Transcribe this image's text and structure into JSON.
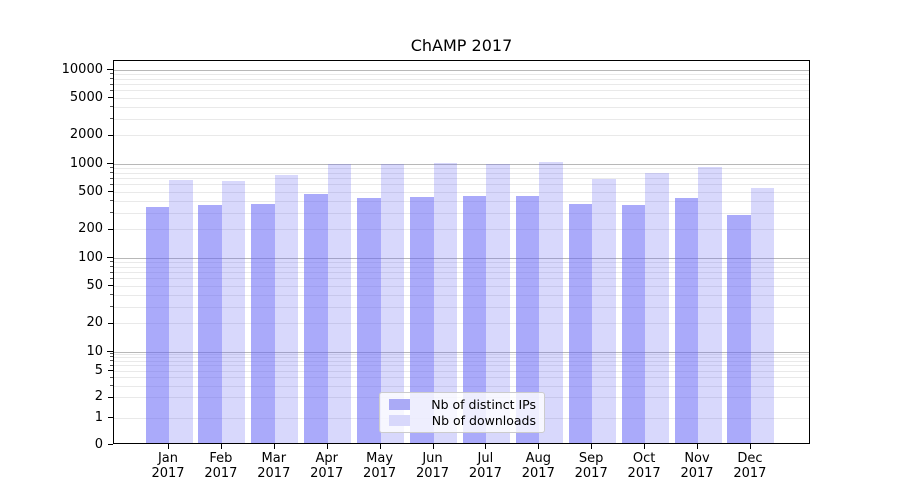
{
  "chart_data": {
    "type": "bar",
    "title": "ChAMP 2017",
    "yscale": "symlog",
    "ylim": [
      0,
      12300
    ],
    "grid": "both",
    "legend_position": "lower center",
    "categories": [
      "Jan 2017",
      "Feb 2017",
      "Mar 2017",
      "Apr 2017",
      "May 2017",
      "Jun 2017",
      "Jul 2017",
      "Aug 2017",
      "Sep 2017",
      "Oct 2017",
      "Nov 2017",
      "Dec 2017"
    ],
    "series": [
      {
        "name": "Nb of distinct IPs",
        "values": [
          345,
          368,
          380,
          480,
          440,
          448,
          462,
          452,
          377,
          365,
          430,
          288
        ]
      },
      {
        "name": "Nb of downloads",
        "values": [
          680,
          660,
          755,
          995,
          1000,
          1020,
          1010,
          1060,
          685,
          810,
          940,
          560
        ]
      }
    ],
    "ytick_values": [
      10000,
      5000,
      2000,
      1000,
      500,
      200,
      100,
      50,
      20,
      10,
      5,
      2,
      1,
      0
    ],
    "ytick_labels": [
      "10000",
      "5000",
      "2000",
      "1000",
      "500",
      "200",
      "100",
      "50",
      "20",
      "10",
      "5",
      "2",
      "1",
      "0"
    ]
  },
  "colors": {
    "ips_bar": "rgba(100,100,245,0.55)",
    "downloads_bar": "rgba(100,100,245,0.25)",
    "ips_swatch": "#aaaaf6",
    "downloads_swatch": "#d8d8fb",
    "major_grid": "#b8b8b8",
    "minor_grid": "#e9e9e9"
  }
}
